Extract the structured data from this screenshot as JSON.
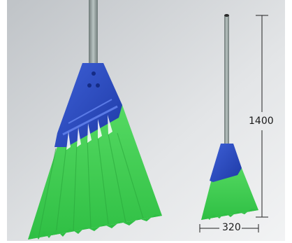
{
  "product": {
    "handle_color": "#9aa7a5",
    "head_color": "#2b4fc2",
    "bristle_color": "#3fcf52",
    "background_color": "#d8d8d8"
  },
  "dimensions": {
    "height_label": "1400",
    "width_label": "320"
  }
}
